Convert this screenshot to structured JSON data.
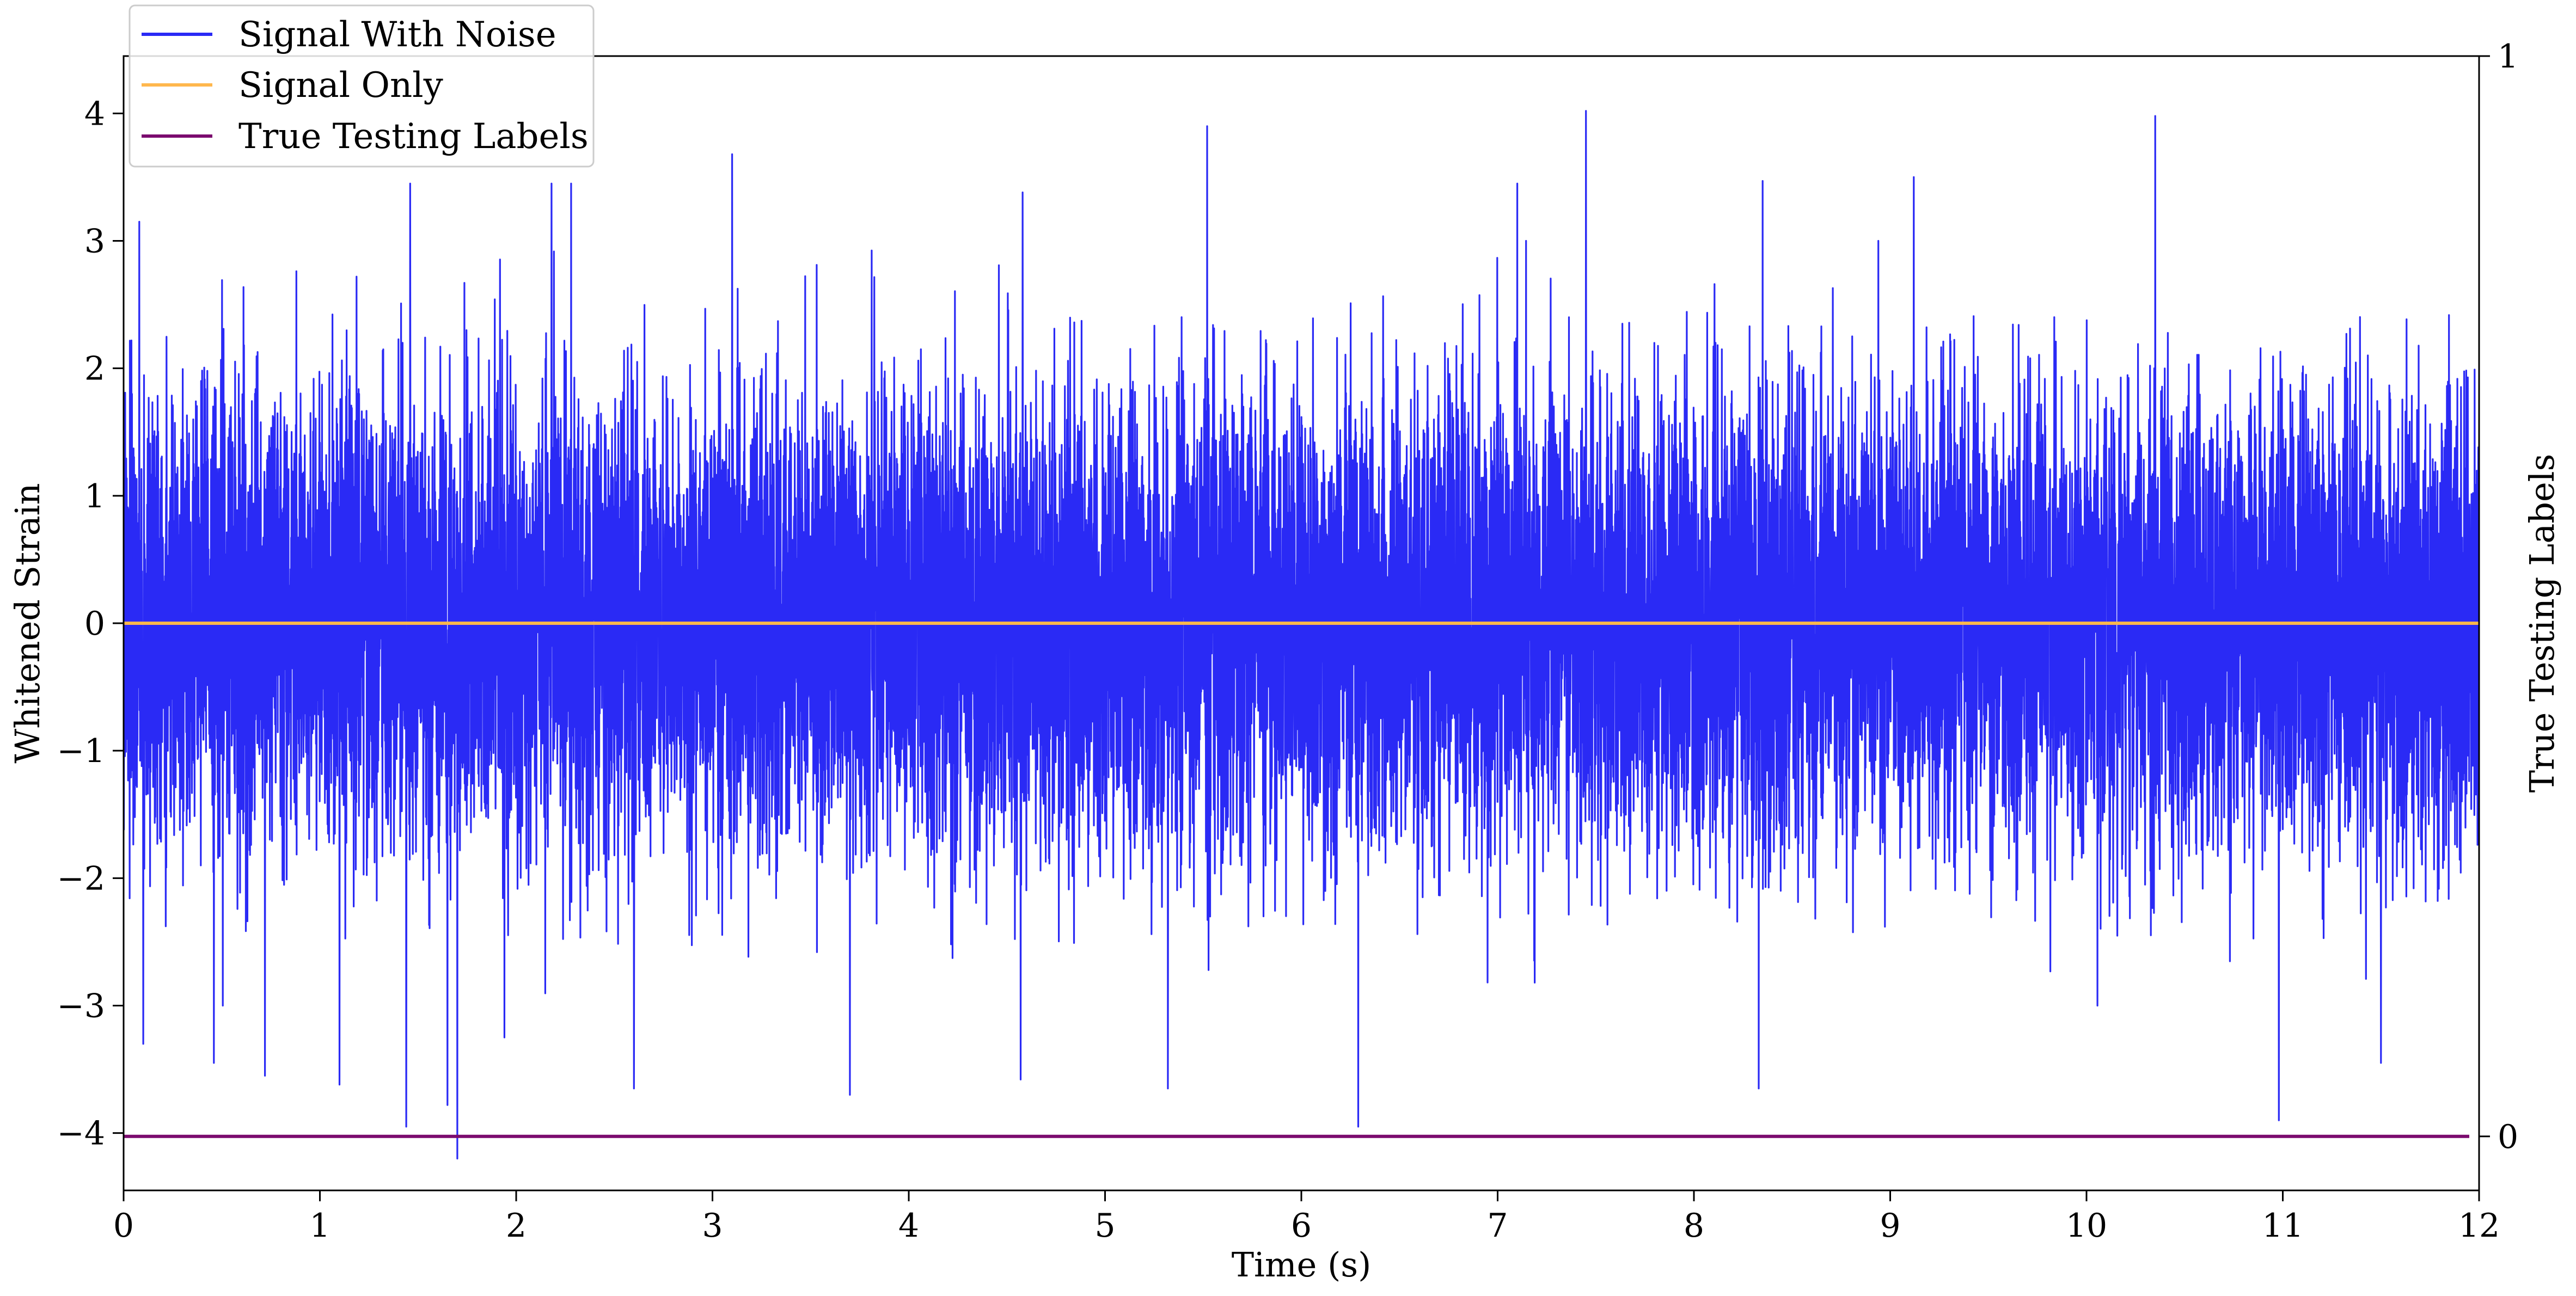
{
  "chart_data": {
    "type": "line",
    "xlabel": "Time (s)",
    "ylabel": "Whitened Strain",
    "ylabel_right": "True Testing Labels",
    "xlim": [
      0,
      12
    ],
    "ylim": [
      -4.45,
      4.45
    ],
    "ylim_right": [
      -0.05,
      1.0
    ],
    "x_ticks": [
      0,
      1,
      2,
      3,
      4,
      5,
      6,
      7,
      8,
      9,
      10,
      11,
      12
    ],
    "y_ticks": [
      -4,
      -3,
      -2,
      -1,
      0,
      1,
      2,
      3,
      4
    ],
    "y_tick_labels": [
      "−4",
      "−3",
      "−2",
      "−1",
      "0",
      "1",
      "2",
      "3",
      "4"
    ],
    "y_right_ticks": [
      0,
      1
    ],
    "grid": false,
    "legend": {
      "position": "top-left",
      "entries": [
        "Signal With Noise",
        "Signal Only",
        "True Testing Labels"
      ]
    },
    "series": [
      {
        "name": "Signal With Noise",
        "color": "#2a2af5",
        "axis": "left",
        "x_range": [
          0,
          12
        ],
        "envelope": {
          "typical_amplitude": 1.5,
          "peak_max": 4.02,
          "peak_min": -4.2,
          "spikes": [
            [
              0.08,
              3.15
            ],
            [
              0.1,
              -3.3
            ],
            [
              0.46,
              -3.45
            ],
            [
              0.72,
              -3.55
            ],
            [
              1.1,
              -3.62
            ],
            [
              1.46,
              3.45
            ],
            [
              1.44,
              -3.95
            ],
            [
              1.65,
              -3.78
            ],
            [
              1.7,
              3.6
            ],
            [
              1.7,
              -4.2
            ],
            [
              1.94,
              -3.25
            ],
            [
              2.18,
              3.45
            ],
            [
              2.28,
              3.45
            ],
            [
              2.6,
              -3.65
            ],
            [
              3.1,
              3.68
            ],
            [
              3.7,
              -3.7
            ],
            [
              4.58,
              3.38
            ],
            [
              4.57,
              -3.58
            ],
            [
              5.52,
              3.9
            ],
            [
              5.32,
              -3.65
            ],
            [
              6.29,
              -3.95
            ],
            [
              7.1,
              3.45
            ],
            [
              7.45,
              4.02
            ],
            [
              8.33,
              -3.65
            ],
            [
              8.35,
              3.47
            ],
            [
              9.12,
              3.5
            ],
            [
              10.35,
              3.98
            ],
            [
              10.98,
              -3.9
            ],
            [
              11.5,
              -3.45
            ]
          ]
        }
      },
      {
        "name": "Signal Only",
        "color": "#ffb74d",
        "axis": "left",
        "x": [
          0,
          12
        ],
        "values": [
          0,
          0
        ]
      },
      {
        "name": "True Testing Labels",
        "color": "#7b0a6e",
        "axis": "right",
        "x": [
          0,
          11.95
        ],
        "values": [
          0,
          0
        ]
      }
    ]
  }
}
